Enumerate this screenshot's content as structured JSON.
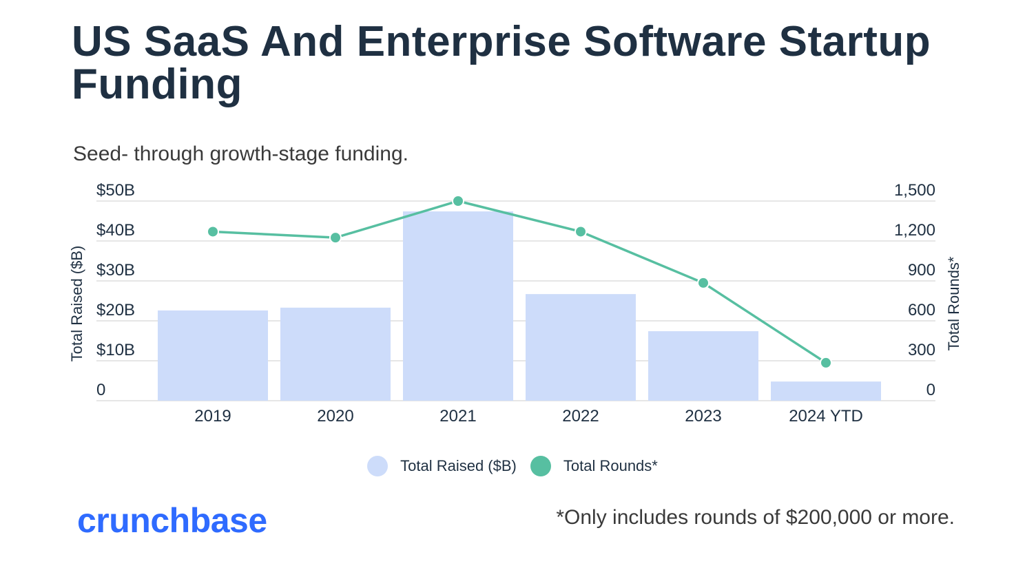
{
  "header": {
    "title": "US SaaS And Enterprise Software Startup Funding",
    "subtitle": "Seed- through growth-stage funding."
  },
  "footer": {
    "logo_text": "crunchbase",
    "footnote": "*Only includes rounds of $200,000 or more."
  },
  "colors": {
    "bar": "#cddcfa",
    "line": "#57bfa1",
    "grid": "#e6e6e6",
    "logo": "#2f6bff"
  },
  "chart_data": {
    "type": "bar",
    "title": "US SaaS And Enterprise Software Startup Funding",
    "subtitle": "Seed- through growth-stage funding.",
    "categories": [
      "2019",
      "2020",
      "2021",
      "2022",
      "2023",
      "2024 YTD"
    ],
    "series": [
      {
        "name": "Total Raised ($B)",
        "type": "bar",
        "axis": "left",
        "values": [
          22.6,
          23.3,
          47.4,
          26.7,
          17.4,
          4.8
        ]
      },
      {
        "name": "Total Rounds*",
        "type": "line",
        "axis": "right",
        "values": [
          1270,
          1225,
          1500,
          1270,
          885,
          285
        ]
      }
    ],
    "ylabel": "Total Raised ($B)",
    "y2label": "Total Rounds*",
    "ylim": [
      0,
      50
    ],
    "y2lim": [
      0,
      1500
    ],
    "yticks": [
      "0",
      "$10B",
      "$20B",
      "$30B",
      "$40B",
      "$50B"
    ],
    "y2ticks": [
      "0",
      "300",
      "600",
      "900",
      "1,200",
      "1,500"
    ],
    "grid": true,
    "legend": "bottom-center"
  }
}
